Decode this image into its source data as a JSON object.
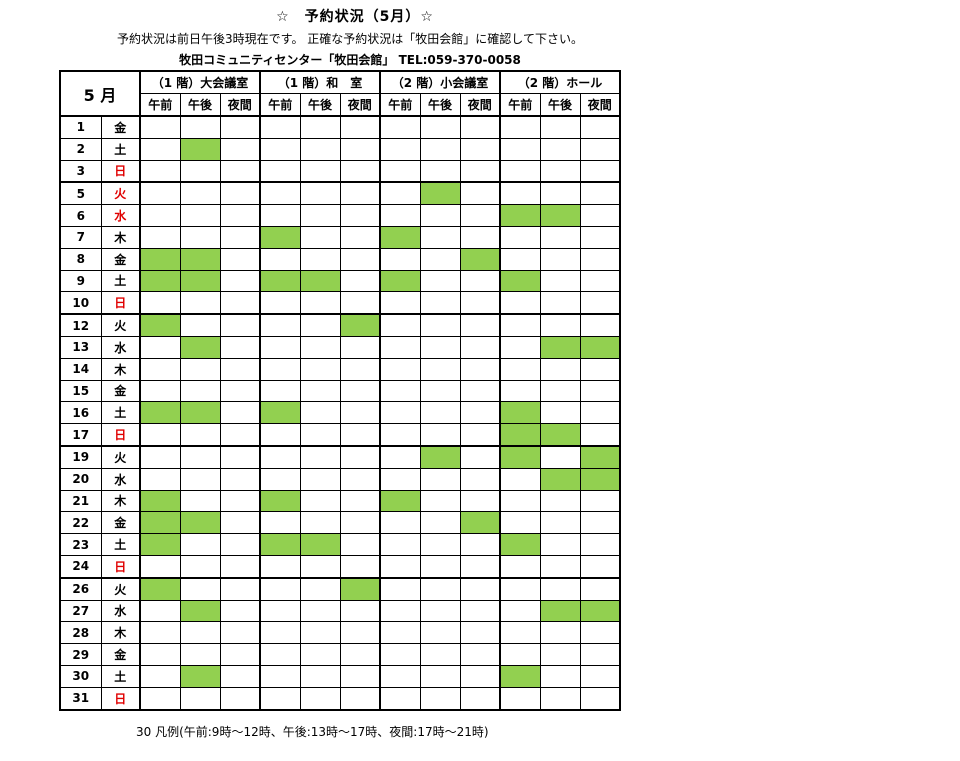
{
  "header": {
    "title": "☆　予約状況（5月）☆",
    "notice": "予約状況は前日午後3時現在です。 正確な予約状況は「牧田会館」に確認して下さい。",
    "contact": "牧田コミュニティセンター「牧田会館」 TEL:059-370-0058"
  },
  "table": {
    "month_label": "5 月",
    "rooms": [
      "（1 階）大会議室",
      "（1 階）和　室",
      "（2 階）小会議室",
      "（2 階）ホール"
    ],
    "slots": [
      "午前",
      "午後",
      "夜間"
    ],
    "booked_color": "#92d050",
    "rows": [
      {
        "day": "1",
        "weekday": "金",
        "red": false,
        "booked": [
          0,
          0,
          0,
          0,
          0,
          0,
          0,
          0,
          0,
          0,
          0,
          0
        ]
      },
      {
        "day": "2",
        "weekday": "土",
        "red": false,
        "booked": [
          0,
          1,
          0,
          0,
          0,
          0,
          0,
          0,
          0,
          0,
          0,
          0
        ]
      },
      {
        "day": "3",
        "weekday": "日",
        "red": true,
        "booked": [
          0,
          0,
          0,
          0,
          0,
          0,
          0,
          0,
          0,
          0,
          0,
          0
        ]
      },
      {
        "day": "5",
        "weekday": "火",
        "red": true,
        "booked": [
          0,
          0,
          0,
          0,
          0,
          0,
          0,
          1,
          0,
          0,
          0,
          0
        ]
      },
      {
        "day": "6",
        "weekday": "水",
        "red": true,
        "booked": [
          0,
          0,
          0,
          0,
          0,
          0,
          0,
          0,
          0,
          1,
          1,
          0
        ]
      },
      {
        "day": "7",
        "weekday": "木",
        "red": false,
        "booked": [
          0,
          0,
          0,
          1,
          0,
          0,
          1,
          0,
          0,
          0,
          0,
          0
        ]
      },
      {
        "day": "8",
        "weekday": "金",
        "red": false,
        "booked": [
          1,
          1,
          0,
          0,
          0,
          0,
          0,
          0,
          1,
          0,
          0,
          0
        ]
      },
      {
        "day": "9",
        "weekday": "土",
        "red": false,
        "booked": [
          1,
          1,
          0,
          1,
          1,
          0,
          1,
          0,
          0,
          1,
          0,
          0
        ]
      },
      {
        "day": "10",
        "weekday": "日",
        "red": true,
        "booked": [
          0,
          0,
          0,
          0,
          0,
          0,
          0,
          0,
          0,
          0,
          0,
          0
        ]
      },
      {
        "day": "12",
        "weekday": "火",
        "red": false,
        "booked": [
          1,
          0,
          0,
          0,
          0,
          1,
          0,
          0,
          0,
          0,
          0,
          0
        ]
      },
      {
        "day": "13",
        "weekday": "水",
        "red": false,
        "booked": [
          0,
          1,
          0,
          0,
          0,
          0,
          0,
          0,
          0,
          0,
          1,
          1
        ]
      },
      {
        "day": "14",
        "weekday": "木",
        "red": false,
        "booked": [
          0,
          0,
          0,
          0,
          0,
          0,
          0,
          0,
          0,
          0,
          0,
          0
        ]
      },
      {
        "day": "15",
        "weekday": "金",
        "red": false,
        "booked": [
          0,
          0,
          0,
          0,
          0,
          0,
          0,
          0,
          0,
          0,
          0,
          0
        ]
      },
      {
        "day": "16",
        "weekday": "土",
        "red": false,
        "booked": [
          1,
          1,
          0,
          1,
          0,
          0,
          0,
          0,
          0,
          1,
          0,
          0
        ]
      },
      {
        "day": "17",
        "weekday": "日",
        "red": true,
        "booked": [
          0,
          0,
          0,
          0,
          0,
          0,
          0,
          0,
          0,
          1,
          1,
          0
        ]
      },
      {
        "day": "19",
        "weekday": "火",
        "red": false,
        "booked": [
          0,
          0,
          0,
          0,
          0,
          0,
          0,
          1,
          0,
          1,
          0,
          1
        ]
      },
      {
        "day": "20",
        "weekday": "水",
        "red": false,
        "booked": [
          0,
          0,
          0,
          0,
          0,
          0,
          0,
          0,
          0,
          0,
          1,
          1
        ]
      },
      {
        "day": "21",
        "weekday": "木",
        "red": false,
        "booked": [
          1,
          0,
          0,
          1,
          0,
          0,
          1,
          0,
          0,
          0,
          0,
          0
        ]
      },
      {
        "day": "22",
        "weekday": "金",
        "red": false,
        "booked": [
          1,
          1,
          0,
          0,
          0,
          0,
          0,
          0,
          1,
          0,
          0,
          0
        ]
      },
      {
        "day": "23",
        "weekday": "土",
        "red": false,
        "booked": [
          1,
          0,
          0,
          1,
          1,
          0,
          0,
          0,
          0,
          1,
          0,
          0
        ]
      },
      {
        "day": "24",
        "weekday": "日",
        "red": true,
        "booked": [
          0,
          0,
          0,
          0,
          0,
          0,
          0,
          0,
          0,
          0,
          0,
          0
        ]
      },
      {
        "day": "26",
        "weekday": "火",
        "red": false,
        "booked": [
          1,
          0,
          0,
          0,
          0,
          1,
          0,
          0,
          0,
          0,
          0,
          0
        ]
      },
      {
        "day": "27",
        "weekday": "水",
        "red": false,
        "booked": [
          0,
          1,
          0,
          0,
          0,
          0,
          0,
          0,
          0,
          0,
          1,
          1
        ]
      },
      {
        "day": "28",
        "weekday": "木",
        "red": false,
        "booked": [
          0,
          0,
          0,
          0,
          0,
          0,
          0,
          0,
          0,
          0,
          0,
          0
        ]
      },
      {
        "day": "29",
        "weekday": "金",
        "red": false,
        "booked": [
          0,
          0,
          0,
          0,
          0,
          0,
          0,
          0,
          0,
          0,
          0,
          0
        ]
      },
      {
        "day": "30",
        "weekday": "土",
        "red": false,
        "booked": [
          0,
          1,
          0,
          0,
          0,
          0,
          0,
          0,
          0,
          1,
          0,
          0
        ]
      },
      {
        "day": "31",
        "weekday": "日",
        "red": true,
        "booked": [
          0,
          0,
          0,
          0,
          0,
          0,
          0,
          0,
          0,
          0,
          0,
          0
        ]
      }
    ]
  },
  "footer": {
    "legend": "30 凡例(午前:9時～12時、午後:13時～17時、夜間:17時～21時)"
  }
}
